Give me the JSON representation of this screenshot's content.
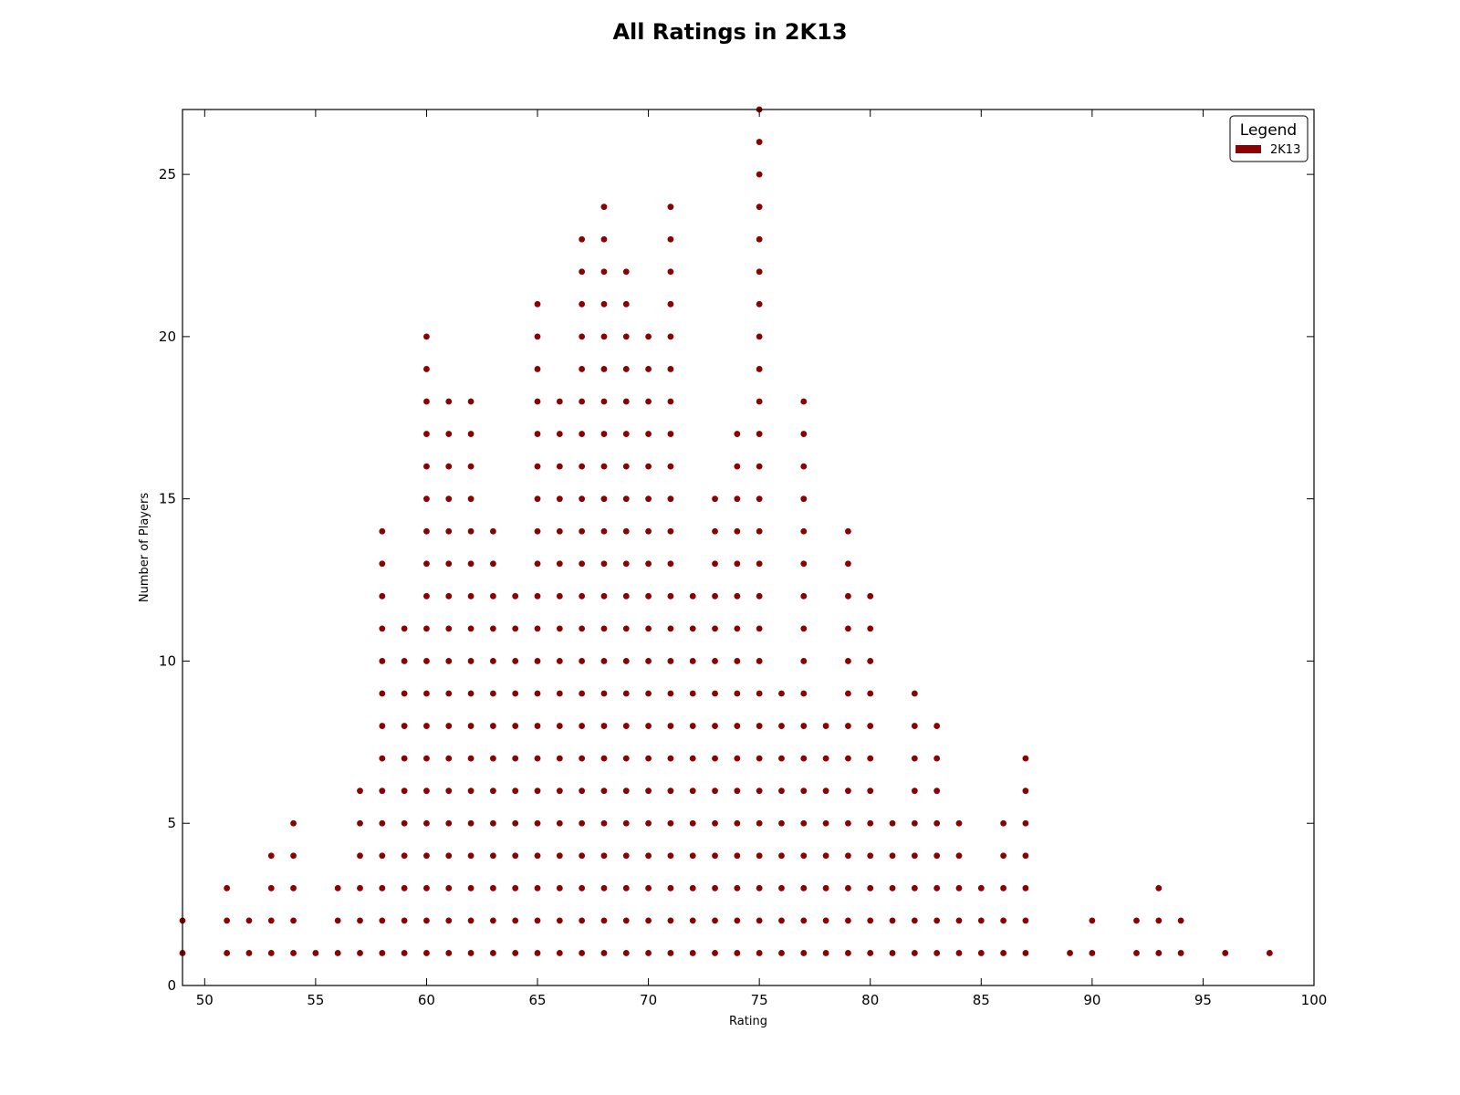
{
  "chart_data": {
    "type": "scatter",
    "title": "All Ratings in 2K13",
    "xlabel": "Rating",
    "ylabel": "Number of Players",
    "xlim": [
      49,
      100
    ],
    "ylim": [
      0,
      27
    ],
    "xticks": [
      50,
      55,
      60,
      65,
      70,
      75,
      80,
      85,
      90,
      95,
      100
    ],
    "yticks": [
      0,
      5,
      10,
      15,
      20,
      25
    ],
    "grid": false,
    "legend": {
      "title": "Legend",
      "placement": "top-right"
    },
    "series": [
      {
        "name": "2K13",
        "color": "#8b0000",
        "counts_by_rating": {
          "49": 2,
          "51": 3,
          "52": 2,
          "53": 4,
          "54": 5,
          "55": 1,
          "56": 3,
          "57": 6,
          "58": 14,
          "59": 11,
          "60": 20,
          "61": 18,
          "62": 18,
          "63": 14,
          "64": 12,
          "65": 21,
          "66": 18,
          "67": 23,
          "68": 24,
          "69": 22,
          "70": 20,
          "71": 24,
          "72": 12,
          "73": 15,
          "74": 17,
          "75": 27,
          "76": 9,
          "77": 18,
          "78": 8,
          "79": 14,
          "80": 12,
          "81": 5,
          "82": 9,
          "83": 8,
          "84": 5,
          "85": 3,
          "86": 5,
          "87": 7,
          "89": 1,
          "90": 2,
          "92": 2,
          "93": 3,
          "94": 2,
          "96": 1,
          "98": 1
        }
      }
    ]
  }
}
